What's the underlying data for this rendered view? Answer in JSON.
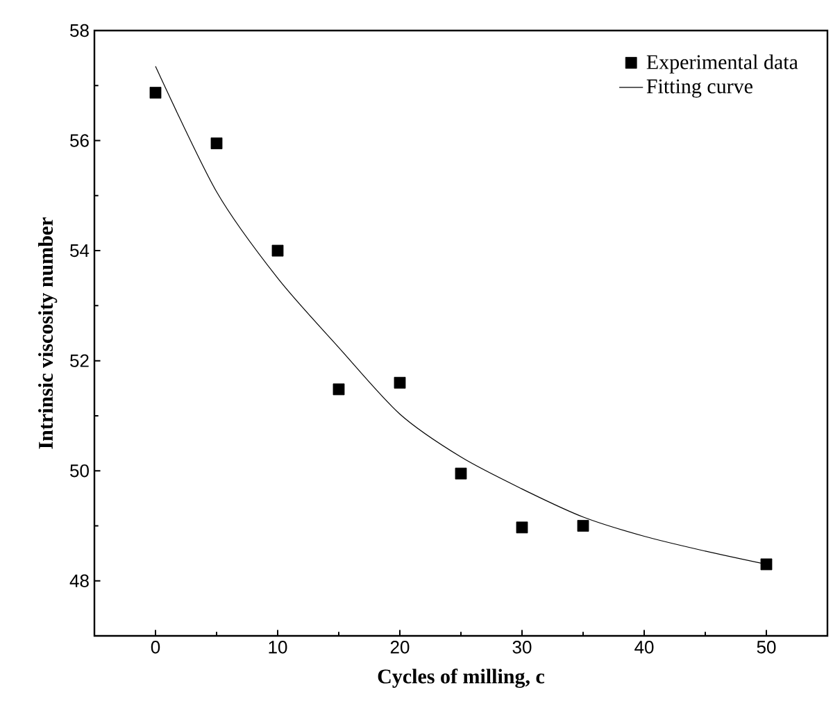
{
  "chart_data": {
    "type": "scatter",
    "xlabel": "Cycles of milling, c",
    "ylabel": "Intrinsic viscosity number",
    "xlim": [
      -5,
      55
    ],
    "ylim": [
      47,
      58
    ],
    "xticks": [
      0,
      10,
      20,
      30,
      40,
      50
    ],
    "yticks": [
      48,
      50,
      52,
      54,
      56,
      58
    ],
    "legend": "top right",
    "series": [
      {
        "name": "Experimental data",
        "marker": "square",
        "color": "#000000",
        "x": [
          0,
          5,
          10,
          15,
          20,
          25,
          30,
          35,
          50
        ],
        "values": [
          56.87,
          55.95,
          54.0,
          51.48,
          51.6,
          49.95,
          48.97,
          49.0,
          48.3
        ]
      },
      {
        "name": "Fitting curve",
        "type": "line",
        "marker": "none",
        "line_style": "solid",
        "color": "#000000",
        "x": [
          0,
          5,
          10,
          15,
          20,
          25,
          30,
          35,
          40,
          45,
          50
        ],
        "values": [
          57.35,
          55.07,
          53.5,
          52.24,
          51.03,
          50.25,
          49.67,
          49.16,
          48.81,
          48.54,
          48.3
        ]
      }
    ]
  }
}
